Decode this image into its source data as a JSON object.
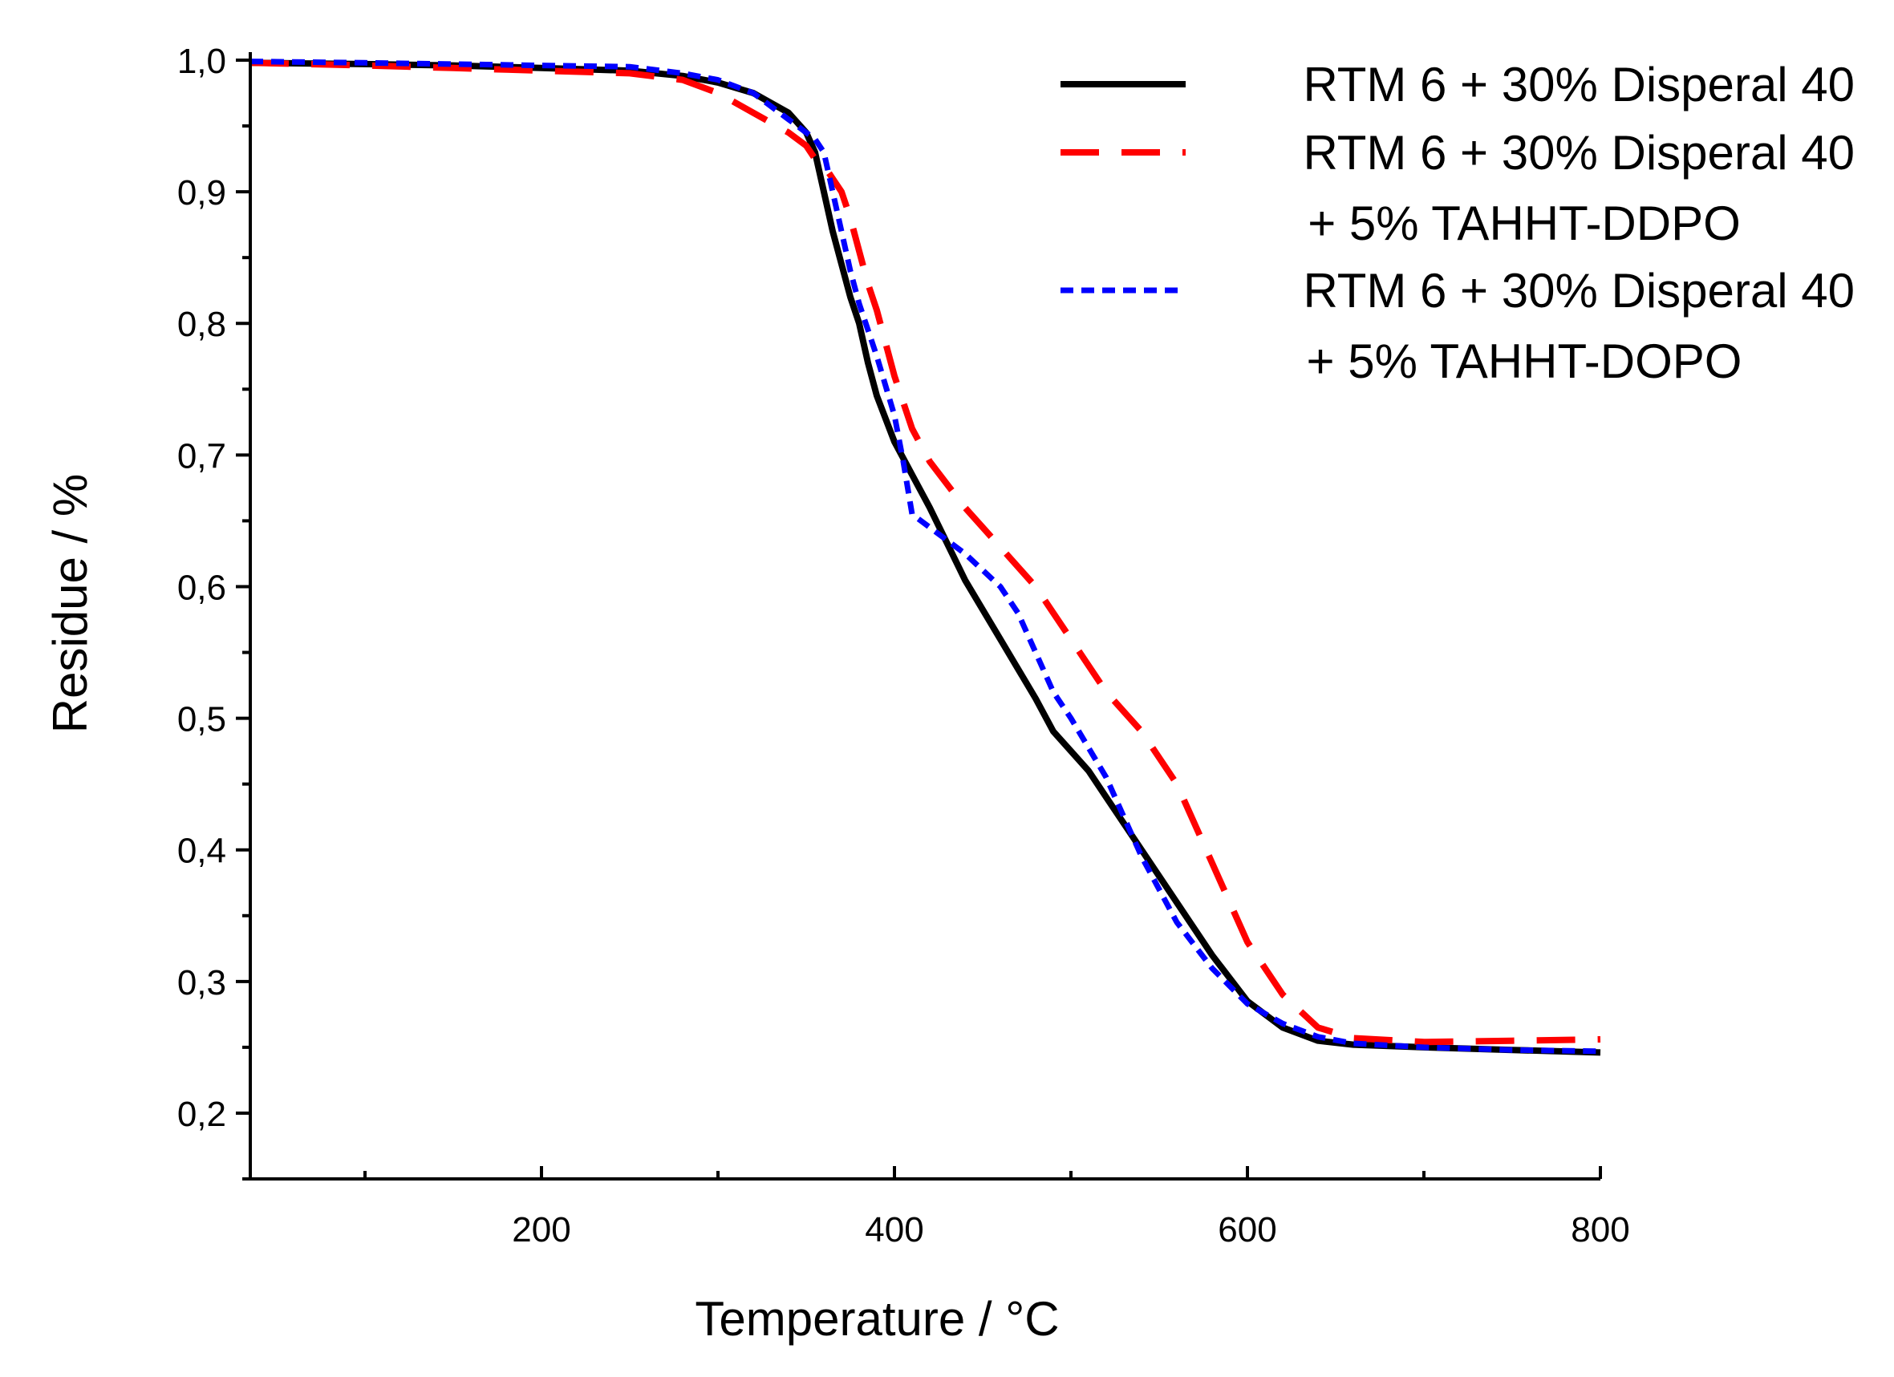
{
  "chart_data": {
    "type": "line",
    "title": "",
    "xlabel": "Temperature / °C",
    "ylabel": "Residue / %",
    "xlim": [
      35,
      800
    ],
    "ylim": [
      0.15,
      1.0
    ],
    "x_ticks": [
      200,
      400,
      600,
      800
    ],
    "x_tick_labels": [
      "200",
      "400",
      "600",
      "800"
    ],
    "y_ticks": [
      0.2,
      0.3,
      0.4,
      0.5,
      0.6,
      0.7,
      0.8,
      0.9,
      1.0
    ],
    "y_tick_labels": [
      "0,2",
      "0,3",
      "0,4",
      "0,5",
      "0,6",
      "0,7",
      "0,8",
      "0,9",
      "1,0"
    ],
    "grid": false,
    "legend_position": "top-right",
    "series": [
      {
        "name": "RTM 6 + 30% Disperal 40",
        "color": "#000000",
        "dash": "solid",
        "x": [
          35,
          100,
          150,
          200,
          250,
          280,
          300,
          320,
          340,
          350,
          355,
          360,
          365,
          370,
          375,
          380,
          385,
          390,
          400,
          410,
          420,
          440,
          460,
          480,
          490,
          500,
          510,
          520,
          540,
          560,
          580,
          600,
          620,
          640,
          660,
          700,
          750,
          800
        ],
        "y": [
          0.998,
          0.997,
          0.996,
          0.994,
          0.992,
          0.988,
          0.983,
          0.975,
          0.96,
          0.945,
          0.93,
          0.9,
          0.87,
          0.845,
          0.82,
          0.8,
          0.77,
          0.745,
          0.71,
          0.685,
          0.66,
          0.605,
          0.56,
          0.515,
          0.49,
          0.475,
          0.46,
          0.44,
          0.4,
          0.36,
          0.32,
          0.285,
          0.265,
          0.255,
          0.252,
          0.25,
          0.248,
          0.246
        ]
      },
      {
        "name": "RTM 6 + 30% Disperal 40",
        "name_line2": "+ 5% TAHHT-DDPO",
        "color": "#ff0000",
        "dash": "long-dash",
        "x": [
          35,
          100,
          150,
          200,
          250,
          280,
          300,
          320,
          340,
          350,
          355,
          360,
          365,
          370,
          375,
          380,
          385,
          390,
          400,
          410,
          420,
          440,
          460,
          480,
          500,
          520,
          540,
          560,
          580,
          600,
          620,
          640,
          660,
          700,
          750,
          800
        ],
        "y": [
          0.998,
          0.996,
          0.994,
          0.992,
          0.99,
          0.985,
          0.975,
          0.96,
          0.945,
          0.935,
          0.925,
          0.92,
          0.91,
          0.9,
          0.88,
          0.855,
          0.83,
          0.81,
          0.76,
          0.72,
          0.695,
          0.66,
          0.63,
          0.6,
          0.56,
          0.52,
          0.49,
          0.45,
          0.39,
          0.33,
          0.29,
          0.265,
          0.257,
          0.254,
          0.255,
          0.256
        ]
      },
      {
        "name": "RTM 6 + 30% Disperal 40",
        "name_line2": "+ 5% TAHHT-DOPO",
        "color": "#0000ff",
        "dash": "short-dash",
        "x": [
          35,
          100,
          150,
          200,
          250,
          280,
          300,
          320,
          340,
          350,
          355,
          360,
          365,
          370,
          375,
          380,
          385,
          390,
          400,
          405,
          410,
          420,
          430,
          440,
          460,
          470,
          480,
          490,
          500,
          520,
          540,
          560,
          580,
          600,
          620,
          640,
          660,
          700,
          750,
          800
        ],
        "y": [
          0.999,
          0.998,
          0.997,
          0.996,
          0.995,
          0.99,
          0.985,
          0.975,
          0.955,
          0.945,
          0.94,
          0.93,
          0.9,
          0.87,
          0.84,
          0.815,
          0.795,
          0.775,
          0.73,
          0.695,
          0.655,
          0.645,
          0.635,
          0.625,
          0.6,
          0.58,
          0.55,
          0.52,
          0.5,
          0.455,
          0.395,
          0.345,
          0.31,
          0.283,
          0.268,
          0.258,
          0.253,
          0.25,
          0.248,
          0.247
        ]
      }
    ]
  }
}
